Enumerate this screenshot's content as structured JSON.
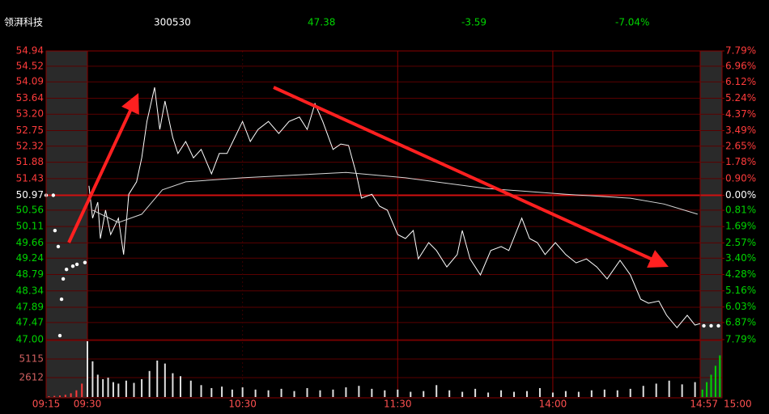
{
  "chart_data": {
    "type": "line",
    "quote": {
      "name": "领湃科技",
      "code": "300530",
      "price": 47.38,
      "change": -3.59,
      "change_pct": "-7.04%"
    },
    "up_color": "#ff3b3b",
    "down_color": "#00d400",
    "flat_color": "#ffffff",
    "grid": true,
    "xlim": [
      -15,
      240
    ],
    "xticks": [
      {
        "value": -15,
        "label": "09:15"
      },
      {
        "value": 0,
        "label": "09:30"
      },
      {
        "value": 60,
        "label": "10:30"
      },
      {
        "value": 120,
        "label": "11:30"
      },
      {
        "value": 180,
        "label": "14:00"
      },
      {
        "value": 237,
        "label": "14:57"
      },
      {
        "value": 240,
        "label": "15:00"
      }
    ],
    "ylim": [
      47,
      54.94
    ],
    "yticks": [
      54.94,
      54.52,
      54.09,
      53.64,
      {
        "value": 53.2,
        "label": "53.20"
      },
      52.75,
      52.32,
      51.88,
      51.43,
      50.97,
      50.56,
      50.11,
      49.66,
      49.24,
      48.79,
      48.34,
      47.89,
      47.47,
      {
        "value": 47,
        "label": "47.00"
      }
    ],
    "y2lim": [
      -7.79,
      7.79
    ],
    "y2ticks": [
      {
        "value": 7.79,
        "label": "7.79%"
      },
      {
        "value": 6.96,
        "label": "6.96%"
      },
      {
        "value": 6.12,
        "label": "6.12%"
      },
      {
        "value": 5.24,
        "label": "5.24%"
      },
      {
        "value": 4.37,
        "label": "4.37%"
      },
      {
        "value": 3.49,
        "label": "3.49%"
      },
      {
        "value": 2.65,
        "label": "2.65%"
      },
      {
        "value": 1.78,
        "label": "1.78%"
      },
      {
        "value": 0.9,
        "label": "0.90%"
      },
      {
        "value": 0,
        "label": "0.00%"
      },
      {
        "value": -0.81,
        "label": "0.81%"
      },
      {
        "value": -1.69,
        "label": "1.69%"
      },
      {
        "value": -2.57,
        "label": "2.57%"
      },
      {
        "value": -3.4,
        "label": "3.40%"
      },
      {
        "value": -4.28,
        "label": "4.28%"
      },
      {
        "value": -5.16,
        "label": "5.16%"
      },
      {
        "value": -6.03,
        "label": "6.03%"
      },
      {
        "value": -6.87,
        "label": "6.87%"
      },
      {
        "value": -7.79,
        "label": "7.79%"
      }
    ],
    "series": [
      {
        "style": "line",
        "color": "#ffffff",
        "x": [
          0.6,
          2,
          4,
          5,
          7,
          9,
          12,
          14,
          16,
          19,
          21,
          23,
          26,
          28,
          30,
          33,
          35,
          38,
          41,
          44,
          48,
          51,
          54,
          57,
          60,
          63,
          66,
          70,
          74,
          78,
          82,
          85,
          88,
          91,
          95,
          98,
          101,
          104,
          106,
          110,
          113,
          116,
          120,
          123,
          126,
          128,
          132,
          135,
          139,
          143,
          145,
          148,
          152,
          156,
          160,
          163,
          168,
          171,
          174,
          177,
          181,
          185,
          189,
          193,
          197,
          201,
          206,
          210,
          214,
          217,
          221,
          224,
          228,
          232,
          235,
          237
        ],
        "values": [
          51.23,
          50.34,
          50.78,
          49.78,
          50.56,
          49.89,
          50.34,
          49.34,
          51.0,
          51.34,
          52.0,
          53.0,
          53.94,
          52.78,
          53.56,
          52.56,
          52.12,
          52.45,
          52.0,
          52.23,
          51.56,
          52.12,
          52.12,
          52.56,
          53.0,
          52.45,
          52.78,
          53.0,
          52.67,
          53.0,
          53.12,
          52.78,
          53.49,
          53.0,
          52.23,
          52.38,
          52.34,
          51.56,
          50.89,
          51.0,
          50.67,
          50.56,
          49.89,
          49.78,
          50.0,
          49.22,
          49.67,
          49.45,
          49.0,
          49.34,
          50.0,
          49.22,
          48.78,
          49.45,
          49.56,
          49.45,
          50.34,
          49.78,
          49.67,
          49.34,
          49.67,
          49.34,
          49.11,
          49.22,
          49.0,
          48.67,
          49.18,
          48.78,
          48.11,
          48.0,
          48.06,
          47.67,
          47.33,
          47.67,
          47.4,
          47.44
        ]
      },
      {
        "style": "line",
        "color": "#d8d8d8",
        "x": [
          2,
          12,
          21,
          29,
          38,
          60,
          100,
          123,
          154,
          185,
          210,
          223,
          236
        ],
        "values": [
          50.56,
          50.22,
          50.45,
          51.12,
          51.34,
          51.45,
          51.6,
          51.45,
          51.16,
          51.0,
          50.89,
          50.73,
          50.45
        ]
      },
      {
        "style": "dots",
        "color": "#ffffff",
        "x": [
          -15,
          -12.4,
          -11.8,
          -10.6,
          -10,
          -9.4,
          -8.8,
          -7.6,
          -5.3,
          -3.8,
          -0.9,
          237.5,
          238.5,
          239.5
        ],
        "values": [
          50.97,
          50.97,
          50.0,
          49.56,
          47.11,
          48.11,
          48.67,
          48.93,
          49.02,
          49.07,
          49.12,
          47.38,
          47.38,
          47.38
        ]
      }
    ],
    "volume": {
      "ylim": [
        0,
        7500
      ],
      "yticks": [
        2612,
        5115
      ],
      "series": [
        {
          "color": "#e0e0e0",
          "x": [
            0,
            2,
            4,
            6,
            8,
            10,
            12,
            15,
            18,
            21,
            24,
            27,
            30,
            33,
            36,
            40,
            44,
            48,
            52,
            56,
            60,
            65,
            70,
            75,
            80,
            85,
            90,
            95,
            100,
            105,
            110,
            115,
            120,
            125,
            130,
            135,
            140,
            145,
            150,
            155,
            160,
            165,
            170,
            175,
            180,
            185,
            190,
            195,
            200,
            205,
            210,
            215,
            220,
            225,
            230,
            235
          ],
          "values": [
            7500,
            4800,
            3000,
            2400,
            2600,
            2000,
            1800,
            2200,
            1900,
            2400,
            3500,
            4900,
            4500,
            3200,
            2800,
            2200,
            1600,
            1200,
            1400,
            1000,
            1300,
            1000,
            900,
            1100,
            800,
            1200,
            900,
            1000,
            1300,
            1500,
            1100,
            900,
            1000,
            700,
            800,
            1600,
            900,
            700,
            1100,
            600,
            900,
            700,
            800,
            1200,
            600,
            800,
            700,
            900,
            1000,
            900,
            1100,
            1500,
            1800,
            2200,
            1700,
            2000
          ]
        },
        {
          "color": "#ff3b3b",
          "x": [
            -14,
            -12,
            -10,
            -8,
            -6,
            -4,
            -2
          ],
          "values": [
            100,
            150,
            200,
            300,
            500,
            900,
            1800
          ]
        },
        {
          "color": "#00d400",
          "x": [
            237.3,
            237.9,
            238.5,
            239.1,
            239.7
          ],
          "values": [
            1000,
            2000,
            3000,
            4200,
            5600
          ]
        }
      ]
    }
  }
}
